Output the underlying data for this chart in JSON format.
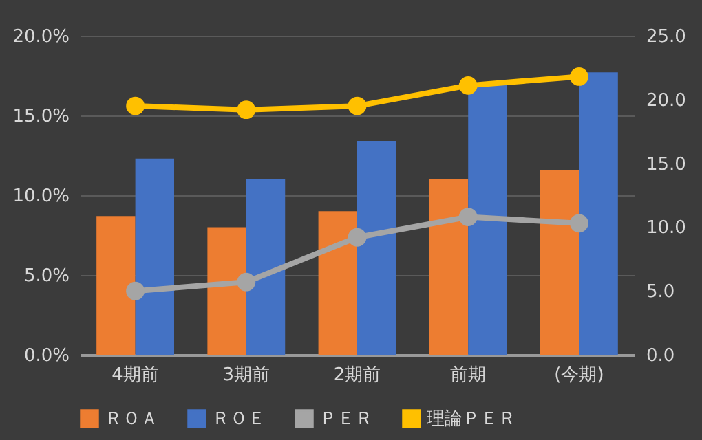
{
  "chart_data": {
    "type": "bar",
    "categories": [
      "4期前",
      "3期前",
      "2期前",
      "前期",
      "(今期)"
    ],
    "series": [
      {
        "name": "ＲＯＡ",
        "color": "#ed7d31",
        "values": [
          8.7,
          8.0,
          9.0,
          11.0,
          11.6
        ]
      },
      {
        "name": "ＲＯＥ",
        "color": "#4472c4",
        "values": [
          12.3,
          11.0,
          13.4,
          17.0,
          17.7
        ]
      },
      {
        "name": "ＰＥＲ",
        "type": "line",
        "axis": "y2",
        "color": "#a5a5a5",
        "values": [
          5.0,
          5.7,
          9.2,
          10.8,
          10.3
        ]
      },
      {
        "name": "理論ＰＥＲ",
        "type": "line",
        "axis": "y2",
        "color": "#ffc000",
        "values": [
          19.5,
          19.2,
          19.5,
          21.1,
          21.8
        ]
      }
    ],
    "ylim": [
      0,
      20
    ],
    "yticks": [
      {
        "value": 0,
        "label": "0.0%"
      },
      {
        "value": 5,
        "label": "5.0%"
      },
      {
        "value": 10,
        "label": "10.0%"
      },
      {
        "value": 15,
        "label": "15.0%"
      },
      {
        "value": 20,
        "label": "20.0%"
      }
    ],
    "y2lim": [
      0,
      25
    ],
    "y2ticks": [
      {
        "value": 0,
        "label": "0.0"
      },
      {
        "value": 5,
        "label": "5.0"
      },
      {
        "value": 10,
        "label": "10.0"
      },
      {
        "value": 15,
        "label": "15.0"
      },
      {
        "value": 20,
        "label": "20.0"
      },
      {
        "value": 25,
        "label": "25.0"
      }
    ],
    "grid": "y",
    "legend": "bottom",
    "marker": "circle"
  }
}
